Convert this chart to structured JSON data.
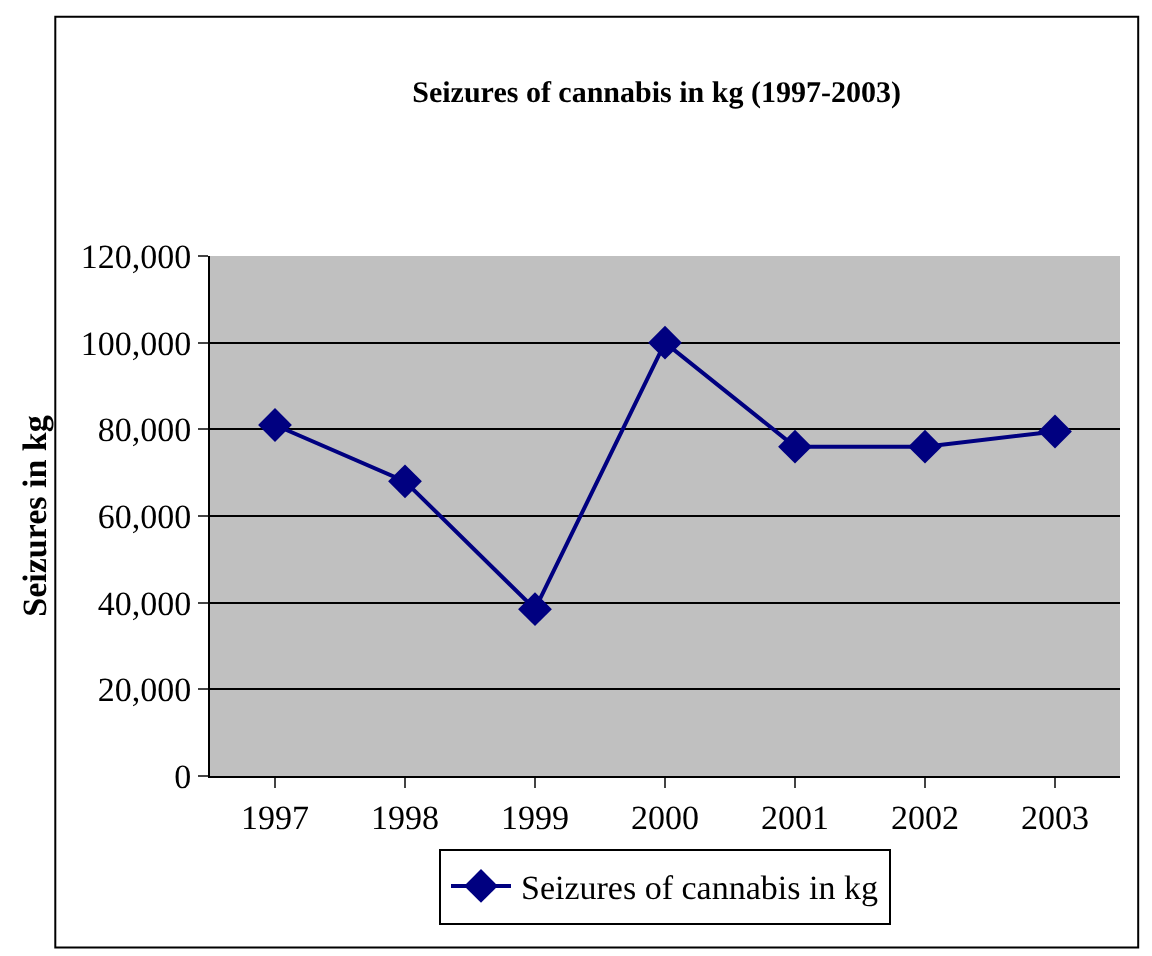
{
  "chart_data": {
    "type": "line",
    "title": "Seizures of cannabis in kg (1997-2003)",
    "ylabel": "Seizures in kg",
    "categories": [
      "1997",
      "1998",
      "1999",
      "2000",
      "2001",
      "2002",
      "2003"
    ],
    "series": [
      {
        "name": "Seizures of cannabis in kg",
        "color": "#000080",
        "values": [
          81000,
          68000,
          38500,
          100000,
          76000,
          76000,
          79500
        ]
      }
    ],
    "ylim": [
      0,
      120000
    ],
    "yticks": [
      {
        "value": 0,
        "label": "0"
      },
      {
        "value": 20000,
        "label": "20,000"
      },
      {
        "value": 40000,
        "label": "40,000"
      },
      {
        "value": 60000,
        "label": "60,000"
      },
      {
        "value": 80000,
        "label": "80,000"
      },
      {
        "value": 100000,
        "label": "100,000"
      },
      {
        "value": 120000,
        "label": "120,000"
      }
    ],
    "grid": "y",
    "legend": "bottom",
    "marker": "diamond",
    "line_style": "solid"
  }
}
